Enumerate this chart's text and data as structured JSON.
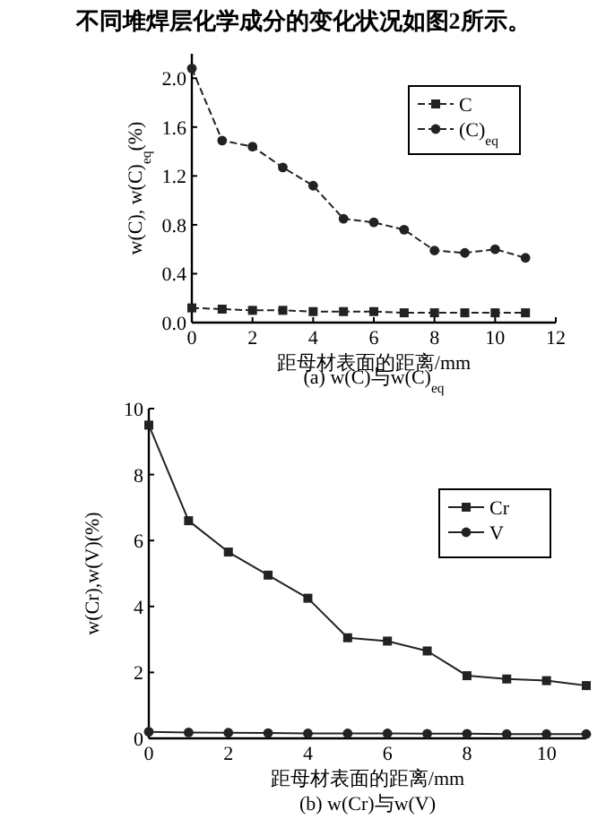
{
  "chart_data": [
    {
      "type": "line",
      "title": "不同堆焊层化学成分的变化状况如图2所示。",
      "xlabel": "距母材表面的距离/mm",
      "ylabel": "w(C), w(C)$_{eq}$(%)",
      "annotations": [
        "(a) w(C)与w(C)$_{eq}$"
      ],
      "x": [
        0,
        1,
        2,
        3,
        4,
        5,
        6,
        7,
        8,
        9,
        10,
        11
      ],
      "xlim": [
        0,
        12
      ],
      "xticks": [
        0,
        2,
        4,
        6,
        8,
        10,
        12
      ],
      "ylim": [
        0,
        2.2
      ],
      "yticks": [
        {
          "value": 0,
          "label": "0.0"
        },
        0.4,
        0.8,
        1.2,
        1.6,
        {
          "value": 2,
          "label": "2.0"
        }
      ],
      "legend": "top right",
      "grid": false,
      "line_style": "dashed",
      "series": [
        {
          "name": "C",
          "color": "#222222",
          "marker": "square",
          "values": [
            0.12,
            0.11,
            0.1,
            0.1,
            0.09,
            0.09,
            0.09,
            0.08,
            0.08,
            0.08,
            0.08,
            0.08
          ]
        },
        {
          "name": "(C)$_{eq}$",
          "color": "#222222",
          "marker": "circle",
          "values": [
            2.08,
            1.49,
            1.44,
            1.27,
            1.12,
            0.85,
            0.82,
            0.76,
            0.59,
            0.57,
            0.6,
            0.53
          ]
        }
      ]
    },
    {
      "type": "line",
      "xlabel": "距母材表面的距离/mm",
      "ylabel": "w(Cr),w(V)(%)",
      "annotations": [
        "(b) w(Cr)与w(V)"
      ],
      "x": [
        0,
        1,
        2,
        3,
        4,
        5,
        6,
        7,
        8,
        9,
        10,
        11
      ],
      "xlim": [
        0,
        11
      ],
      "xticks": [
        0,
        2,
        4,
        6,
        8,
        10
      ],
      "ylim": [
        0,
        10
      ],
      "yticks": [
        0,
        2,
        4,
        6,
        8,
        10
      ],
      "legend": "top right",
      "grid": false,
      "line_style": "solid",
      "series": [
        {
          "name": "Cr",
          "color": "#222222",
          "marker": "square",
          "values": [
            9.5,
            6.6,
            5.65,
            4.95,
            4.25,
            3.05,
            2.95,
            2.65,
            1.9,
            1.8,
            1.75,
            1.6
          ]
        },
        {
          "name": "V",
          "color": "#222222",
          "marker": "circle",
          "values": [
            0.2,
            0.18,
            0.17,
            0.16,
            0.15,
            0.15,
            0.15,
            0.14,
            0.14,
            0.13,
            0.13,
            0.13
          ]
        }
      ]
    }
  ]
}
